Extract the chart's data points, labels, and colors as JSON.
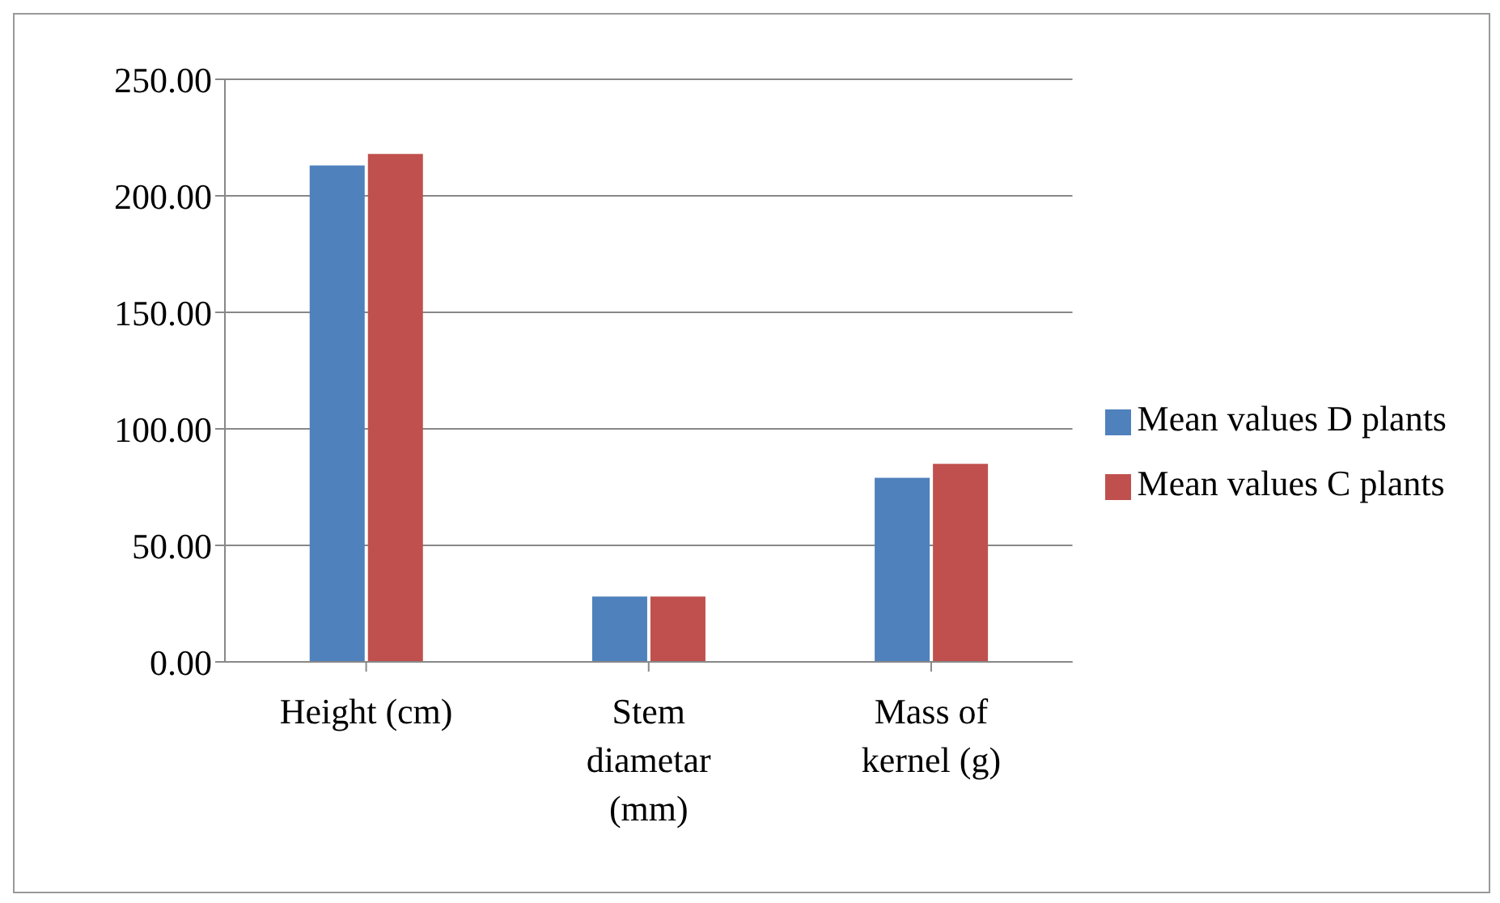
{
  "chart_data": {
    "type": "bar",
    "categories": [
      "Height (cm)",
      "Stem diametar (mm)",
      "Mass of kernel (g)"
    ],
    "series": [
      {
        "name": "Mean values D plants",
        "color": "#4f81bd",
        "values": [
          213,
          28,
          79
        ]
      },
      {
        "name": "Mean values C plants",
        "color": "#c0504d",
        "values": [
          218,
          28,
          85
        ]
      }
    ],
    "ylim": [
      0,
      250
    ],
    "yticks": [
      {
        "value": 0,
        "label": "0.00"
      },
      {
        "value": 50,
        "label": "50.00"
      },
      {
        "value": 100,
        "label": "100.00"
      },
      {
        "value": 150,
        "label": "150.00"
      },
      {
        "value": 200,
        "label": "200.00"
      },
      {
        "value": 250,
        "label": "250.00"
      }
    ],
    "grid": "y",
    "legend": "right"
  }
}
